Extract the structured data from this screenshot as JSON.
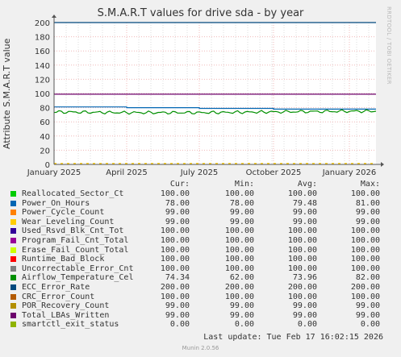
{
  "title": "S.M.A.R.T values for drive sda - by year",
  "watermark": "RRDTOOL / TOBI OETIKER",
  "footer": "Munin 2.0.56",
  "last_update": "Last update: Tue Feb 17 16:02:15 2026",
  "legend_headers": {
    "cur": "Cur:",
    "min": "Min:",
    "avg": "Avg:",
    "max": "Max:"
  },
  "legend": [
    {
      "name": "Reallocated_Sector_Ct",
      "color": "#00cc00",
      "cur": "100.00",
      "min": "100.00",
      "avg": "100.00",
      "max": "100.00"
    },
    {
      "name": "Power_On_Hours",
      "color": "#0066b3",
      "cur": "78.00",
      "min": "78.00",
      "avg": "79.48",
      "max": "81.00"
    },
    {
      "name": "Power_Cycle_Count",
      "color": "#ff8000",
      "cur": "99.00",
      "min": "99.00",
      "avg": "99.00",
      "max": "99.00"
    },
    {
      "name": "Wear_Leveling_Count",
      "color": "#ffcc00",
      "cur": "99.00",
      "min": "99.00",
      "avg": "99.00",
      "max": "99.00"
    },
    {
      "name": "Used_Rsvd_Blk_Cnt_Tot",
      "color": "#330099",
      "cur": "100.00",
      "min": "100.00",
      "avg": "100.00",
      "max": "100.00"
    },
    {
      "name": "Program_Fail_Cnt_Total",
      "color": "#990099",
      "cur": "100.00",
      "min": "100.00",
      "avg": "100.00",
      "max": "100.00"
    },
    {
      "name": "Erase_Fail_Count_Total",
      "color": "#ccff00",
      "cur": "100.00",
      "min": "100.00",
      "avg": "100.00",
      "max": "100.00"
    },
    {
      "name": "Runtime_Bad_Block",
      "color": "#ff0000",
      "cur": "100.00",
      "min": "100.00",
      "avg": "100.00",
      "max": "100.00"
    },
    {
      "name": "Uncorrectable_Error_Cnt",
      "color": "#808080",
      "cur": "100.00",
      "min": "100.00",
      "avg": "100.00",
      "max": "100.00"
    },
    {
      "name": "Airflow_Temperature_Cel",
      "color": "#008f00",
      "cur": "74.34",
      "min": "62.00",
      "avg": "73.96",
      "max": "82.00"
    },
    {
      "name": "ECC_Error_Rate",
      "color": "#00487d",
      "cur": "200.00",
      "min": "200.00",
      "avg": "200.00",
      "max": "200.00"
    },
    {
      "name": "CRC_Error_Count",
      "color": "#b35a00",
      "cur": "100.00",
      "min": "100.00",
      "avg": "100.00",
      "max": "100.00"
    },
    {
      "name": "POR_Recovery_Count",
      "color": "#b38f00",
      "cur": "99.00",
      "min": "99.00",
      "avg": "99.00",
      "max": "99.00"
    },
    {
      "name": "Total_LBAs_Written",
      "color": "#6b006b",
      "cur": "99.00",
      "min": "99.00",
      "avg": "99.00",
      "max": "99.00"
    },
    {
      "name": "smartctl_exit_status",
      "color": "#8fb300",
      "cur": "0.00",
      "min": "0.00",
      "avg": "0.00",
      "max": "0.00"
    }
  ],
  "chart_data": {
    "type": "line",
    "title": "S.M.A.R.T values for drive sda - by year",
    "ylabel": "Attribute S.M.A.R.T value",
    "ylim": [
      0,
      200
    ],
    "yticks": [
      0,
      20,
      40,
      60,
      80,
      100,
      120,
      140,
      160,
      180,
      200
    ],
    "x_ticks": [
      "January 2025",
      "April 2025",
      "July 2025",
      "October 2025",
      "January 2026"
    ],
    "grid": true,
    "series": [
      {
        "name": "ECC_Error_Rate",
        "color": "#00487d",
        "x": [
          "January 2025",
          "January 2026"
        ],
        "y": [
          200,
          200
        ]
      },
      {
        "name": "Total_LBAs_Written",
        "color": "#6b006b",
        "x": [
          "January 2025",
          "January 2026"
        ],
        "y": [
          99,
          99
        ]
      },
      {
        "name": "Power_On_Hours",
        "color": "#0066b3",
        "x": [
          "January 2025",
          "April 2025",
          "July 2025",
          "October 2025",
          "January 2026"
        ],
        "y": [
          81,
          80,
          79,
          78,
          78
        ]
      },
      {
        "name": "Airflow_Temperature_Cel",
        "color": "#008f00",
        "x": [
          "January 2025",
          "April 2025",
          "July 2025",
          "October 2025",
          "January 2026"
        ],
        "y": [
          74,
          73,
          73,
          74,
          75
        ]
      },
      {
        "name": "smartctl_exit_status",
        "color": "#8fb300",
        "x": [
          "January 2025",
          "January 2026"
        ],
        "y": [
          0,
          0
        ]
      }
    ]
  }
}
